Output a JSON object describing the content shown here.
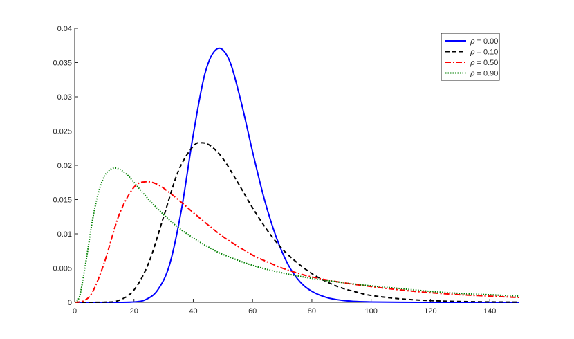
{
  "chart_data": {
    "type": "line",
    "title": "",
    "xlabel": "",
    "ylabel": "",
    "xlim": [
      0,
      150
    ],
    "ylim": [
      0,
      0.04
    ],
    "xticks": [
      0,
      20,
      40,
      60,
      80,
      100,
      120,
      140
    ],
    "yticks": [
      0,
      0.005,
      0.01,
      0.015,
      0.02,
      0.025,
      0.03,
      0.035,
      0.04
    ],
    "x_tick_labels": [
      "0",
      "20",
      "40",
      "60",
      "80",
      "100",
      "120",
      "140"
    ],
    "y_tick_labels": [
      "0",
      "0.005",
      "0.01",
      "0.015",
      "0.02",
      "0.025",
      "0.03",
      "0.035",
      "0.04"
    ],
    "grid": false,
    "legend_position": "top-right",
    "legend_symbol": "ρ",
    "series": [
      {
        "name": "ρ = 0.00",
        "value_label": "= 0.00",
        "color": "#0000ff",
        "style": "solid",
        "x": [
          0,
          10,
          15,
          20,
          24,
          28,
          32,
          36,
          40,
          44,
          48,
          52,
          56,
          60,
          64,
          68,
          72,
          76,
          80,
          85,
          90,
          95,
          100,
          110,
          120,
          130,
          150
        ],
        "y": [
          0,
          0,
          0,
          5e-05,
          0.0004,
          0.0018,
          0.0055,
          0.0135,
          0.0245,
          0.0335,
          0.037,
          0.0355,
          0.0295,
          0.022,
          0.015,
          0.0095,
          0.0055,
          0.003,
          0.0016,
          0.0007,
          0.0003,
          0.00012,
          5e-05,
          1e-05,
          0,
          0,
          0
        ]
      },
      {
        "name": "ρ = 0.10",
        "value_label": "= 0.10",
        "color": "#000000",
        "style": "dashed",
        "x": [
          0,
          10,
          15,
          20,
          25,
          30,
          35,
          40,
          43,
          46,
          50,
          55,
          60,
          65,
          70,
          75,
          80,
          85,
          90,
          95,
          100,
          110,
          120,
          130,
          140,
          150
        ],
        "y": [
          0,
          2e-05,
          0.0003,
          0.0018,
          0.0058,
          0.0125,
          0.0192,
          0.0228,
          0.0233,
          0.0228,
          0.021,
          0.0175,
          0.0138,
          0.0105,
          0.0078,
          0.0058,
          0.0042,
          0.003,
          0.0021,
          0.0015,
          0.001,
          0.0005,
          0.00025,
          0.00012,
          6e-05,
          3e-05
        ]
      },
      {
        "name": "ρ = 0.50",
        "value_label": "= 0.50",
        "color": "#ff0000",
        "style": "dashdot",
        "x": [
          0,
          3,
          6,
          10,
          15,
          20,
          24,
          28,
          32,
          36,
          40,
          45,
          50,
          55,
          60,
          65,
          70,
          75,
          80,
          90,
          100,
          110,
          120,
          130,
          140,
          150
        ],
        "y": [
          0,
          0.0002,
          0.0015,
          0.0058,
          0.0128,
          0.0168,
          0.0176,
          0.0172,
          0.016,
          0.0146,
          0.0131,
          0.0113,
          0.0096,
          0.0082,
          0.0069,
          0.0059,
          0.005,
          0.0043,
          0.0037,
          0.0029,
          0.0023,
          0.0018,
          0.0014,
          0.0011,
          0.0009,
          0.0007
        ]
      },
      {
        "name": "ρ = 0.90",
        "value_label": "= 0.90",
        "color": "#008000",
        "style": "dotted",
        "x": [
          0,
          1,
          2,
          4,
          6,
          8,
          10,
          12,
          14,
          16,
          18,
          20,
          25,
          30,
          35,
          40,
          45,
          50,
          60,
          70,
          80,
          90,
          100,
          110,
          120,
          130,
          140,
          150
        ],
        "y": [
          0,
          0.0003,
          0.0015,
          0.0065,
          0.012,
          0.016,
          0.0184,
          0.0194,
          0.0196,
          0.0192,
          0.0185,
          0.0175,
          0.015,
          0.0128,
          0.0109,
          0.0094,
          0.0081,
          0.007,
          0.0054,
          0.0043,
          0.0035,
          0.0029,
          0.0024,
          0.002,
          0.0016,
          0.0013,
          0.0011,
          0.0009
        ]
      }
    ]
  }
}
